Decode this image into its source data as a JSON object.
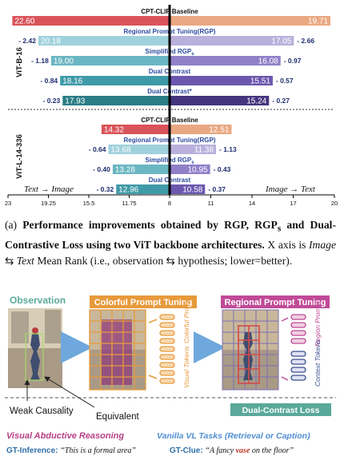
{
  "chart_data": {
    "type": "bar",
    "orientation": "diverging-horizontal",
    "left_direction_label": "Text → Image",
    "right_direction_label": "Image → Text",
    "x_tick_labels": [
      "23",
      "19.25",
      "15.5",
      "11.75",
      "8",
      "11",
      "14",
      "17",
      "20"
    ],
    "groups": [
      {
        "name": "ViT-B-16",
        "rows": [
          {
            "label": "CPT-CLIP Baseline",
            "left": 22.6,
            "right": 19.71,
            "left_text": "22.60",
            "right_text": "19.71",
            "left_delta": "",
            "right_delta": ""
          },
          {
            "label": "Regional Prompt Tuning(RGP)",
            "left": 20.18,
            "right": 17.05,
            "left_text": "20.18",
            "right_text": "17.05",
            "left_delta": "- 2.42",
            "right_delta": "- 2.66"
          },
          {
            "label": "Simplified RGP",
            "label_sub": "s",
            "left": 19.0,
            "right": 16.08,
            "left_text": "19.00",
            "right_text": "16.08",
            "left_delta": "- 1.18",
            "right_delta": "- 0.97"
          },
          {
            "label": "Dual Contrast",
            "left": 18.16,
            "right": 15.51,
            "left_text": "18.16",
            "right_text": "15.51",
            "left_delta": "- 0.84",
            "right_delta": "- 0.57"
          },
          {
            "label": "Dual Contrast*",
            "left": 17.93,
            "right": 15.24,
            "left_text": "17.93",
            "right_text": "15.24",
            "left_delta": "- 0.23",
            "right_delta": "- 0.27"
          }
        ]
      },
      {
        "name": "ViT-L-14-336",
        "rows": [
          {
            "label": "CPT-CLIP Baseline",
            "left": 14.32,
            "right": 12.51,
            "left_text": "14.32",
            "right_text": "12.51",
            "left_delta": "",
            "right_delta": ""
          },
          {
            "label": "Regional Prompt Tuning(RGP)",
            "left": 13.68,
            "right": 11.38,
            "left_text": "13.68",
            "right_text": "11.38",
            "left_delta": "- 0.64",
            "right_delta": "- 1.13"
          },
          {
            "label": "Simplified RGP",
            "label_sub": "s",
            "left": 13.28,
            "right": 10.95,
            "left_text": "13.28",
            "right_text": "10.95",
            "left_delta": "- 0.40",
            "right_delta": "- 0.43"
          },
          {
            "label": "Dual Contrast",
            "left": 12.96,
            "right": 10.58,
            "left_text": "12.96",
            "right_text": "10.58",
            "left_delta": "- 0.32",
            "right_delta": "- 0.37"
          }
        ]
      }
    ],
    "colors": {
      "left": [
        "#d9545a",
        "#9fd1dc",
        "#6ab6c2",
        "#3f9aa8",
        "#2b7d86"
      ],
      "right": [
        "#e9a882",
        "#b9b0dc",
        "#8f80c8",
        "#6b58ae",
        "#45357e"
      ],
      "label": "#2b4aa0",
      "delta": "#1c2d6e"
    }
  },
  "caption": {
    "prefix": "(a) ",
    "bold": "Performance improvements obtained by RGP, RGP",
    "bold_sub": "s",
    "bold2": " and Dual-Contrastive Loss using two ViT backbone architectures.",
    "t1": " X axis is ",
    "math1": "Image",
    "arrows": "⇆",
    "math2": "Text",
    "t2": " Mean Rank (i.e., observation ",
    "t3": " hypothesis; lower=better)."
  },
  "figure": {
    "observation_label": "Observation",
    "colorful_title": "Colorful Prompt Tuning",
    "regional_title": "Regional Prompt Tuning",
    "colorful_prompt_label": "Colorful Prompt",
    "visual_tokens_label": "Visual Tokens",
    "region_prompt_label": "Region Prompt",
    "context_tokens_label": "Context Tokens",
    "dual_contrast_label": "Dual-Contrast Loss",
    "weak_causality": "Weak Causality",
    "equivalent": "Equivalent",
    "visual_abductive": "Visual Abductive Reasoning",
    "vanilla_vl": "Vanilla VL Tasks (Retrieval or Caption)",
    "gt_inference_label": "GT-Inference:",
    "gt_inference_text": "“This is a formal area”",
    "gt_clue_label": "GT-Clue:",
    "gt_clue_pre": "“A fancy ",
    "gt_clue_word": "vase",
    "gt_clue_post": " on the floor”",
    "colors": {
      "observation": "#5aa99a",
      "colorful": "#e79a3c",
      "regional": "#c04a97",
      "dual": "#5aa99a",
      "abductive": "#b63f86",
      "vanilla": "#4f8fd0",
      "gt": "#2f6fa8",
      "vase": "#c0392b"
    }
  }
}
